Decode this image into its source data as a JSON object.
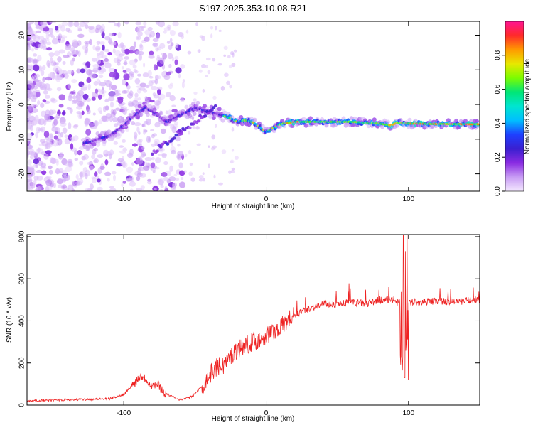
{
  "title": "S197.2025.353.10.08.R21",
  "chart_data": [
    {
      "type": "heatmap",
      "xlabel": "Height of straight line (km)",
      "ylabel": "Frequency (Hz)",
      "xlim": [
        -168,
        150
      ],
      "ylim": [
        -25,
        24
      ],
      "x_ticks": [
        -100,
        0,
        100
      ],
      "y_ticks": [
        -20,
        -10,
        0,
        10,
        20
      ],
      "colorbar": {
        "label": "Normalized spectral amplitude",
        "range": [
          0,
          1
        ],
        "ticks": [
          "0.0",
          "0.2",
          "0.4",
          "0.6",
          "0.8"
        ],
        "colors": [
          "#f4e8ff",
          "#c89cf4",
          "#8a2be2",
          "#3a1fd0",
          "#1e40ff",
          "#00bfff",
          "#00e5d0",
          "#00e676",
          "#7cfc00",
          "#e8e800",
          "#ff9900",
          "#ff2a2a",
          "#ff1493"
        ]
      },
      "ridge": {
        "x": [
          -125,
          -118,
          -110,
          -100,
          -92,
          -85,
          -80,
          -70,
          -60,
          -50,
          -40,
          -32,
          -25,
          -20,
          -15,
          -10,
          -6,
          -3,
          0,
          4,
          8,
          12,
          20,
          40,
          60,
          80,
          88,
          92,
          100,
          120,
          148
        ],
        "y": [
          -11,
          -10,
          -9,
          -6,
          -3,
          -1,
          -2,
          -5,
          -3,
          -1,
          -2,
          -3,
          -4,
          -5,
          -4.5,
          -5,
          -6,
          -7,
          -8,
          -7,
          -6,
          -5.5,
          -5,
          -5,
          -5,
          -5.5,
          -6,
          -5.2,
          -5.5,
          -5.6,
          -5.7
        ]
      }
    },
    {
      "type": "line",
      "xlabel": "Height of straight line (km)",
      "ylabel": "SNR (10 * v/v)",
      "xlim": [
        -168,
        150
      ],
      "ylim": [
        0,
        810
      ],
      "x_ticks": [
        -100,
        0,
        100
      ],
      "y_ticks": [
        0,
        200,
        400,
        600,
        800
      ],
      "series": [
        {
          "name": "SNR",
          "color": "#ee2222",
          "x": [
            -168,
            -140,
            -110,
            -100,
            -92,
            -88,
            -84,
            -80,
            -76,
            -72,
            -66,
            -60,
            -52,
            -45,
            -40,
            -35,
            -30,
            -25,
            -20,
            -15,
            -10,
            -5,
            0,
            5,
            10,
            15,
            20,
            30,
            40,
            50,
            60,
            70,
            80,
            90,
            95,
            97,
            98,
            100,
            105,
            110,
            120,
            130,
            140,
            150
          ],
          "y": [
            20,
            25,
            30,
            50,
            110,
            140,
            120,
            90,
            100,
            60,
            40,
            25,
            40,
            90,
            140,
            180,
            190,
            230,
            270,
            280,
            300,
            310,
            330,
            350,
            370,
            400,
            430,
            460,
            480,
            480,
            490,
            480,
            500,
            500,
            480,
            470,
            480,
            490,
            490,
            490,
            495,
            490,
            495,
            500
          ]
        }
      ]
    }
  ]
}
